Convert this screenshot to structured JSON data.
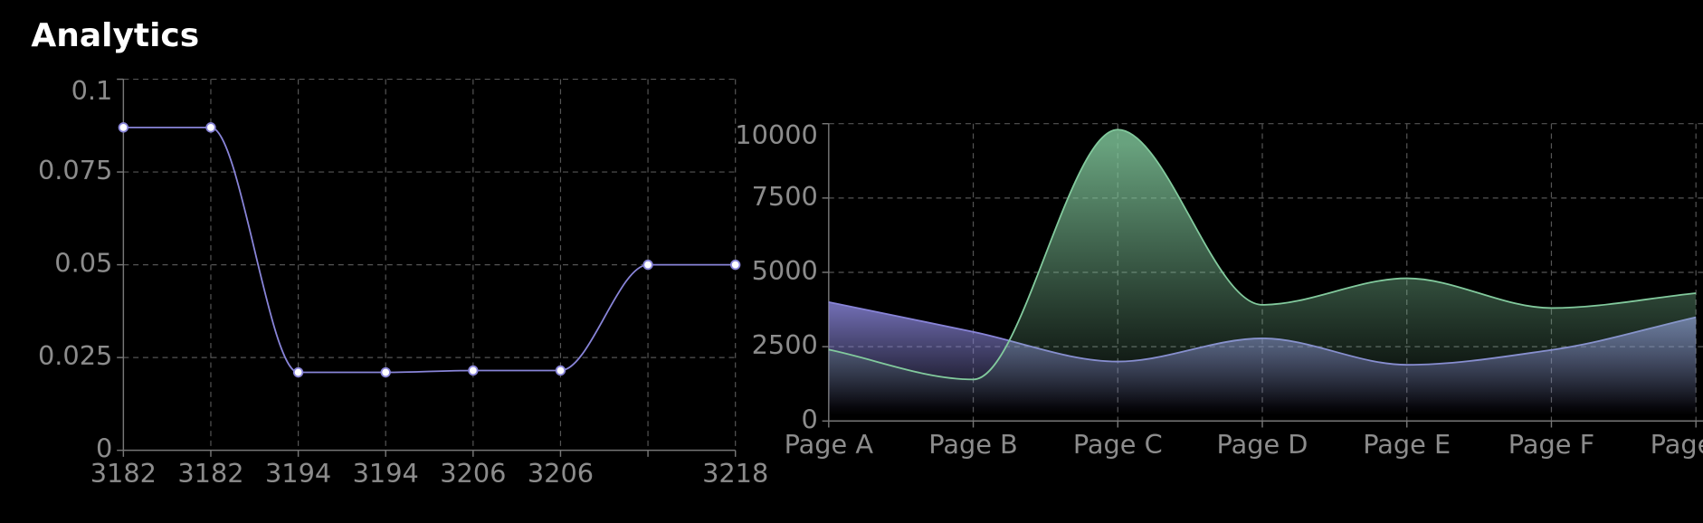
{
  "title": "Analytics",
  "chart_data": [
    {
      "type": "line",
      "categories": [
        "3182",
        "3182",
        "3194",
        "3194",
        "3206",
        "3206",
        null,
        "3218"
      ],
      "series": [
        {
          "color": "#8884d8",
          "values": [
            0.087,
            0.087,
            0.021,
            0.021,
            0.0215,
            0.0215,
            0.05,
            0.05
          ]
        }
      ],
      "ylim": [
        0,
        0.1
      ],
      "yticks": [
        0,
        0.025,
        0.05,
        0.075,
        0.1
      ],
      "grid": true
    },
    {
      "type": "area",
      "categories": [
        "Page A",
        "Page B",
        "Page C",
        "Page D",
        "Page E",
        "Page F",
        "Page G"
      ],
      "series": [
        {
          "color": "#8884d8",
          "values": [
            4000,
            3000,
            2000,
            2780,
            1890,
            2390,
            3490
          ]
        },
        {
          "color": "#82ca9d",
          "values": [
            2400,
            1398,
            9800,
            3908,
            4800,
            3800,
            4300
          ]
        }
      ],
      "ylim": [
        0,
        10000
      ],
      "yticks": [
        0,
        2500,
        5000,
        7500,
        10000
      ],
      "grid": true
    }
  ]
}
